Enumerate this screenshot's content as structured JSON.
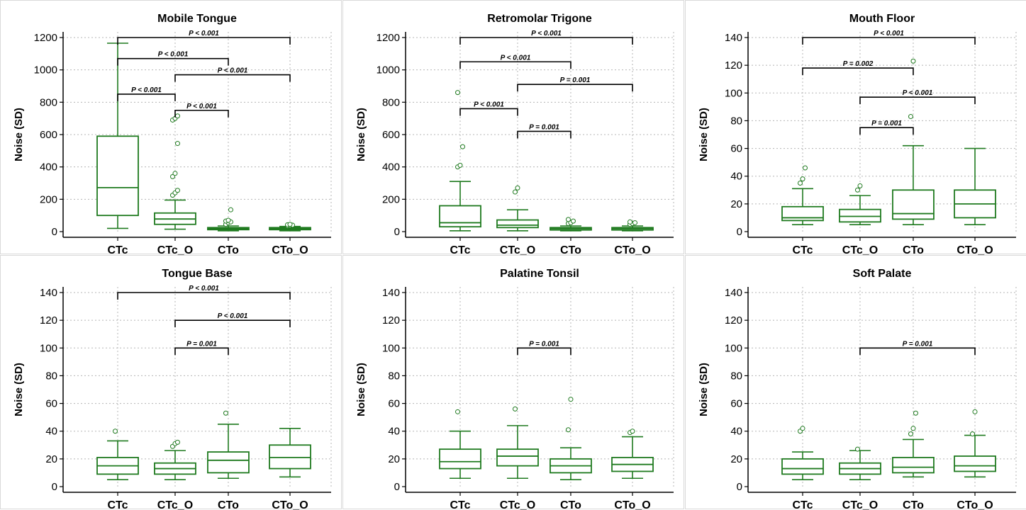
{
  "chart_data": [
    {
      "type": "box",
      "title": "Mobile Tongue",
      "ylabel": "Noise (SD)",
      "xlabel": "",
      "ylim": [
        0,
        1200
      ],
      "yticks": [
        0,
        200,
        400,
        600,
        800,
        1000,
        1200
      ],
      "grid": true,
      "categories": [
        "CTc",
        "CTc_O",
        "CTo",
        "CTo_O"
      ],
      "boxes": [
        {
          "min": 20,
          "q1": 100,
          "median": 272,
          "q3": 590,
          "max": 1165,
          "outliers": []
        },
        {
          "min": 15,
          "q1": 45,
          "median": 78,
          "q3": 115,
          "max": 195,
          "outliers": [
            225,
            240,
            255,
            340,
            360,
            545,
            690,
            700,
            715
          ]
        },
        {
          "min": 5,
          "q1": 12,
          "median": 18,
          "q3": 25,
          "max": 35,
          "outliers": [
            45,
            55,
            60,
            65,
            70,
            135
          ]
        },
        {
          "min": 5,
          "q1": 12,
          "median": 18,
          "q3": 25,
          "max": 32,
          "outliers": [
            35,
            38,
            40,
            42,
            45
          ]
        }
      ],
      "comparisons": [
        {
          "from": 0,
          "to": 3,
          "y": 1200,
          "label": "P < 0.001"
        },
        {
          "from": 0,
          "to": 2,
          "y": 1070,
          "label": "P < 0.001"
        },
        {
          "from": 1,
          "to": 3,
          "y": 970,
          "label": "P < 0.001"
        },
        {
          "from": 0,
          "to": 1,
          "y": 850,
          "label": "P < 0.001"
        },
        {
          "from": 1,
          "to": 2,
          "y": 750,
          "label": "P < 0.001"
        }
      ]
    },
    {
      "type": "box",
      "title": "Retromolar Trigone",
      "ylabel": "Noise (SD)",
      "xlabel": "",
      "ylim": [
        0,
        1200
      ],
      "yticks": [
        0,
        200,
        400,
        600,
        800,
        1000,
        1200
      ],
      "grid": true,
      "categories": [
        "CTc",
        "CTc_O",
        "CTo",
        "CTo_O"
      ],
      "boxes": [
        {
          "min": 5,
          "q1": 30,
          "median": 55,
          "q3": 160,
          "max": 310,
          "outliers": [
            400,
            410,
            525,
            860
          ]
        },
        {
          "min": 5,
          "q1": 25,
          "median": 40,
          "q3": 72,
          "max": 135,
          "outliers": [
            245,
            270
          ]
        },
        {
          "min": 5,
          "q1": 10,
          "median": 18,
          "q3": 25,
          "max": 35,
          "outliers": [
            50,
            55,
            65,
            75
          ]
        },
        {
          "min": 5,
          "q1": 10,
          "median": 18,
          "q3": 25,
          "max": 35,
          "outliers": [
            45,
            50,
            55,
            60
          ]
        }
      ],
      "comparisons": [
        {
          "from": 0,
          "to": 3,
          "y": 1200,
          "label": "P < 0.001"
        },
        {
          "from": 0,
          "to": 2,
          "y": 1050,
          "label": "P < 0.001"
        },
        {
          "from": 1,
          "to": 3,
          "y": 910,
          "label": "P = 0.001"
        },
        {
          "from": 0,
          "to": 1,
          "y": 760,
          "label": "P < 0.001"
        },
        {
          "from": 1,
          "to": 2,
          "y": 620,
          "label": "P = 0.001"
        }
      ]
    },
    {
      "type": "box",
      "title": "Mouth Floor",
      "ylabel": "Noise (SD)",
      "xlabel": "",
      "ylim": [
        0,
        140
      ],
      "yticks": [
        0,
        20,
        40,
        60,
        80,
        100,
        120,
        140
      ],
      "grid": true,
      "categories": [
        "CTc",
        "CTc_O",
        "CTo",
        "CTo_O"
      ],
      "boxes": [
        {
          "min": 5,
          "q1": 8,
          "median": 10,
          "q3": 18,
          "max": 31,
          "outliers": [
            35,
            38,
            46
          ]
        },
        {
          "min": 5,
          "q1": 7,
          "median": 11,
          "q3": 16,
          "max": 26,
          "outliers": [
            30,
            33
          ]
        },
        {
          "min": 5,
          "q1": 9,
          "median": 13,
          "q3": 30,
          "max": 62,
          "outliers": [
            83,
            123
          ]
        },
        {
          "min": 5,
          "q1": 10,
          "median": 20,
          "q3": 30,
          "max": 60,
          "outliers": []
        }
      ],
      "comparisons": [
        {
          "from": 0,
          "to": 3,
          "y": 140,
          "label": "P < 0.001"
        },
        {
          "from": 0,
          "to": 2,
          "y": 118,
          "label": "P = 0.002"
        },
        {
          "from": 1,
          "to": 3,
          "y": 97,
          "label": "P < 0.001"
        },
        {
          "from": 1,
          "to": 2,
          "y": 75,
          "label": "P = 0.001"
        }
      ]
    },
    {
      "type": "box",
      "title": "Tongue Base",
      "ylabel": "Noise (SD)",
      "xlabel": "",
      "ylim": [
        0,
        140
      ],
      "yticks": [
        0,
        20,
        40,
        60,
        80,
        100,
        120,
        140
      ],
      "grid": true,
      "categories": [
        "CTc",
        "CTc_O",
        "CTo",
        "CTo_O"
      ],
      "boxes": [
        {
          "min": 5,
          "q1": 9,
          "median": 15,
          "q3": 21,
          "max": 33,
          "outliers": [
            40
          ]
        },
        {
          "min": 5,
          "q1": 9,
          "median": 13,
          "q3": 17,
          "max": 26,
          "outliers": [
            29,
            31,
            32
          ]
        },
        {
          "min": 6,
          "q1": 10,
          "median": 19,
          "q3": 25,
          "max": 45,
          "outliers": [
            53
          ]
        },
        {
          "min": 7,
          "q1": 13,
          "median": 21,
          "q3": 30,
          "max": 42,
          "outliers": []
        }
      ],
      "comparisons": [
        {
          "from": 0,
          "to": 3,
          "y": 140,
          "label": "P < 0.001"
        },
        {
          "from": 1,
          "to": 3,
          "y": 120,
          "label": "P < 0.001"
        },
        {
          "from": 1,
          "to": 2,
          "y": 100,
          "label": "P = 0.001"
        }
      ]
    },
    {
      "type": "box",
      "title": "Palatine Tonsil",
      "ylabel": "Noise (SD)",
      "xlabel": "",
      "ylim": [
        0,
        140
      ],
      "yticks": [
        0,
        20,
        40,
        60,
        80,
        100,
        120,
        140
      ],
      "grid": true,
      "categories": [
        "CTc",
        "CTc_O",
        "CTo",
        "CTo_O"
      ],
      "boxes": [
        {
          "min": 6,
          "q1": 13,
          "median": 18,
          "q3": 27,
          "max": 40,
          "outliers": [
            54
          ]
        },
        {
          "min": 6,
          "q1": 15,
          "median": 22,
          "q3": 27,
          "max": 44,
          "outliers": [
            56
          ]
        },
        {
          "min": 5,
          "q1": 10,
          "median": 15,
          "q3": 20,
          "max": 28,
          "outliers": [
            41,
            63
          ]
        },
        {
          "min": 6,
          "q1": 11,
          "median": 16,
          "q3": 21,
          "max": 36,
          "outliers": [
            39,
            40
          ]
        }
      ],
      "comparisons": [
        {
          "from": 1,
          "to": 2,
          "y": 100,
          "label": "P = 0.001"
        }
      ]
    },
    {
      "type": "box",
      "title": "Soft Palate",
      "ylabel": "Noise (SD)",
      "xlabel": "",
      "ylim": [
        0,
        140
      ],
      "yticks": [
        0,
        20,
        40,
        60,
        80,
        100,
        120,
        140
      ],
      "grid": true,
      "categories": [
        "CTc",
        "CTc_O",
        "CTo",
        "CTo_O"
      ],
      "boxes": [
        {
          "min": 5,
          "q1": 9,
          "median": 13,
          "q3": 20,
          "max": 25,
          "outliers": [
            40,
            42
          ]
        },
        {
          "min": 5,
          "q1": 9,
          "median": 13,
          "q3": 17,
          "max": 26,
          "outliers": [
            27
          ]
        },
        {
          "min": 7,
          "q1": 10,
          "median": 14,
          "q3": 21,
          "max": 34,
          "outliers": [
            38,
            42,
            53
          ]
        },
        {
          "min": 7,
          "q1": 11,
          "median": 15,
          "q3": 22,
          "max": 37,
          "outliers": [
            38,
            54
          ]
        }
      ],
      "comparisons": [
        {
          "from": 1,
          "to": 3,
          "y": 100,
          "label": "P = 0.001"
        }
      ]
    }
  ],
  "colors": {
    "box": "#1f7a1f",
    "grid": "#b5b5b5",
    "axis": "#000000",
    "bracket": "#000000",
    "panel_border": "#d9d9d9"
  }
}
